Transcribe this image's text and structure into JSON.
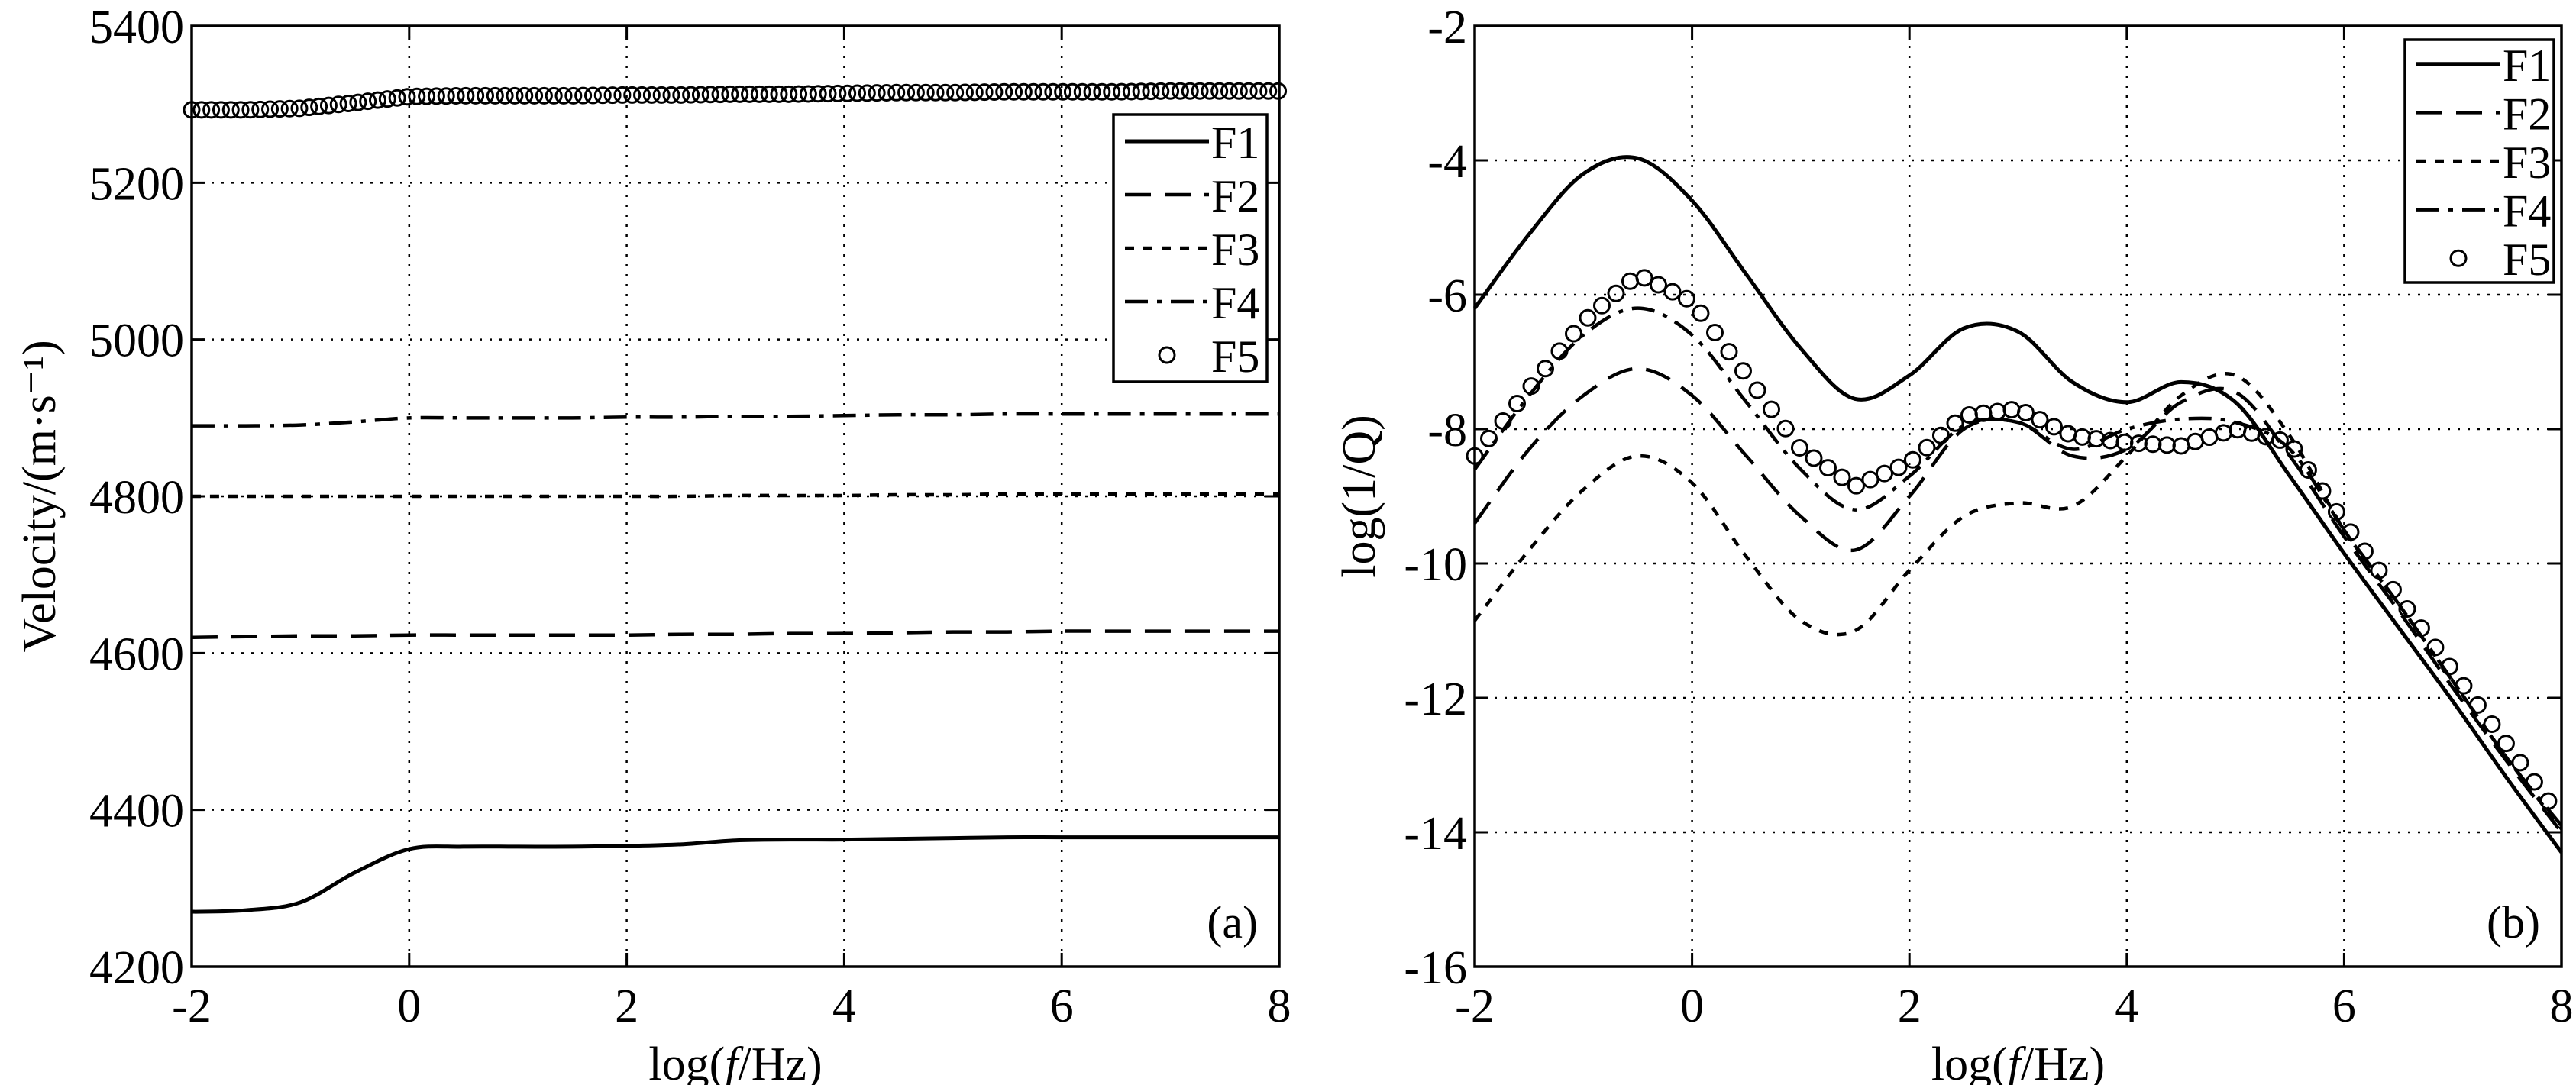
{
  "chart_data": [
    {
      "type": "line",
      "panel_label": "(a)",
      "xlabel": "log(f/Hz)",
      "ylabel": "Velocity/(m·s⁻¹)",
      "xlim": [
        -2,
        8
      ],
      "ylim": [
        4200,
        5400
      ],
      "xticks": [
        -2,
        0,
        2,
        4,
        6,
        8
      ],
      "yticks": [
        4200,
        4400,
        4600,
        4800,
        5000,
        5200,
        5400
      ],
      "grid": true,
      "legend_position": "top-right",
      "x": [
        -2,
        -1.5,
        -1,
        -0.5,
        0,
        0.5,
        1,
        1.5,
        2,
        2.5,
        3,
        3.5,
        4,
        4.5,
        5,
        5.5,
        6,
        6.5,
        7,
        7.5,
        8
      ],
      "series": [
        {
          "name": "F1",
          "style": "solid",
          "values": [
            4270,
            4272,
            4282,
            4320,
            4350,
            4353,
            4353,
            4353,
            4354,
            4356,
            4361,
            4362,
            4362,
            4363,
            4364,
            4365,
            4365,
            4365,
            4365,
            4365,
            4365
          ]
        },
        {
          "name": "F2",
          "style": "dashed",
          "values": [
            4620,
            4621,
            4622,
            4622,
            4623,
            4623,
            4623,
            4623,
            4623,
            4624,
            4624,
            4625,
            4625,
            4626,
            4627,
            4627,
            4628,
            4628,
            4628,
            4628,
            4628
          ]
        },
        {
          "name": "F3",
          "style": "dotted",
          "values": [
            4800,
            4800,
            4800,
            4800,
            4800,
            4800,
            4800,
            4800,
            4800,
            4800,
            4801,
            4801,
            4801,
            4802,
            4802,
            4803,
            4803,
            4803,
            4803,
            4803,
            4803
          ]
        },
        {
          "name": "F4",
          "style": "dash-dot",
          "values": [
            4890,
            4890,
            4891,
            4895,
            4900,
            4900,
            4900,
            4900,
            4901,
            4901,
            4902,
            4902,
            4903,
            4904,
            4904,
            4905,
            4905,
            4905,
            4905,
            4905,
            4905
          ]
        },
        {
          "name": "F5",
          "style": "circles",
          "values": [
            5293,
            5293,
            5295,
            5302,
            5310,
            5311,
            5311,
            5311,
            5312,
            5312,
            5313,
            5313,
            5314,
            5315,
            5315,
            5316,
            5316,
            5316,
            5317,
            5317,
            5317
          ]
        }
      ]
    },
    {
      "type": "line",
      "panel_label": "(b)",
      "xlabel": "log(f/Hz)",
      "ylabel": "log(1/Q)",
      "xlim": [
        -2,
        8
      ],
      "ylim": [
        -16,
        -2
      ],
      "xticks": [
        -2,
        0,
        2,
        4,
        6,
        8
      ],
      "yticks": [
        -16,
        -14,
        -12,
        -10,
        -8,
        -6,
        -4,
        -2
      ],
      "grid": true,
      "legend_position": "top-right",
      "x": [
        -2,
        -1.5,
        -1,
        -0.5,
        0,
        0.5,
        1,
        1.5,
        2,
        2.5,
        3,
        3.5,
        4,
        4.5,
        5,
        5.5,
        6,
        6.5,
        7,
        7.5,
        8
      ],
      "series": [
        {
          "name": "F1",
          "style": "solid",
          "values": [
            -6.2,
            -5.1,
            -4.2,
            -3.97,
            -4.6,
            -5.7,
            -6.8,
            -7.55,
            -7.2,
            -6.5,
            -6.55,
            -7.3,
            -7.6,
            -7.3,
            -7.6,
            -8.7,
            -9.85,
            -10.95,
            -12.05,
            -13.2,
            -14.3
          ]
        },
        {
          "name": "F2",
          "style": "dashed",
          "values": [
            -9.4,
            -8.3,
            -7.5,
            -7.1,
            -7.5,
            -8.4,
            -9.3,
            -9.8,
            -9.0,
            -8.0,
            -7.9,
            -8.4,
            -8.3,
            -7.6,
            -7.45,
            -8.4,
            -9.6,
            -10.7,
            -11.85,
            -12.95,
            -14.0
          ]
        },
        {
          "name": "F3",
          "style": "dotted",
          "values": [
            -10.85,
            -9.8,
            -8.9,
            -8.4,
            -8.8,
            -9.9,
            -10.85,
            -11.0,
            -10.1,
            -9.3,
            -9.1,
            -9.15,
            -8.4,
            -7.5,
            -7.2,
            -8.1,
            -9.5,
            -10.6,
            -11.75,
            -12.9,
            -13.95
          ]
        },
        {
          "name": "F4",
          "style": "dash-dot",
          "values": [
            -8.6,
            -7.5,
            -6.6,
            -6.2,
            -6.6,
            -7.6,
            -8.6,
            -9.2,
            -8.7,
            -7.95,
            -7.9,
            -8.3,
            -8.0,
            -7.85,
            -7.9,
            -8.3,
            -9.5,
            -10.6,
            -11.75,
            -12.9,
            -13.9
          ]
        },
        {
          "name": "F5",
          "style": "circles",
          "values": [
            -8.4,
            -7.4,
            -6.4,
            -5.7,
            -6.1,
            -7.2,
            -8.3,
            -8.85,
            -8.5,
            -7.8,
            -7.7,
            -8.1,
            -8.2,
            -8.25,
            -8.0,
            -8.2,
            -9.4,
            -10.5,
            -11.6,
            -12.7,
            -13.8
          ]
        }
      ]
    }
  ]
}
